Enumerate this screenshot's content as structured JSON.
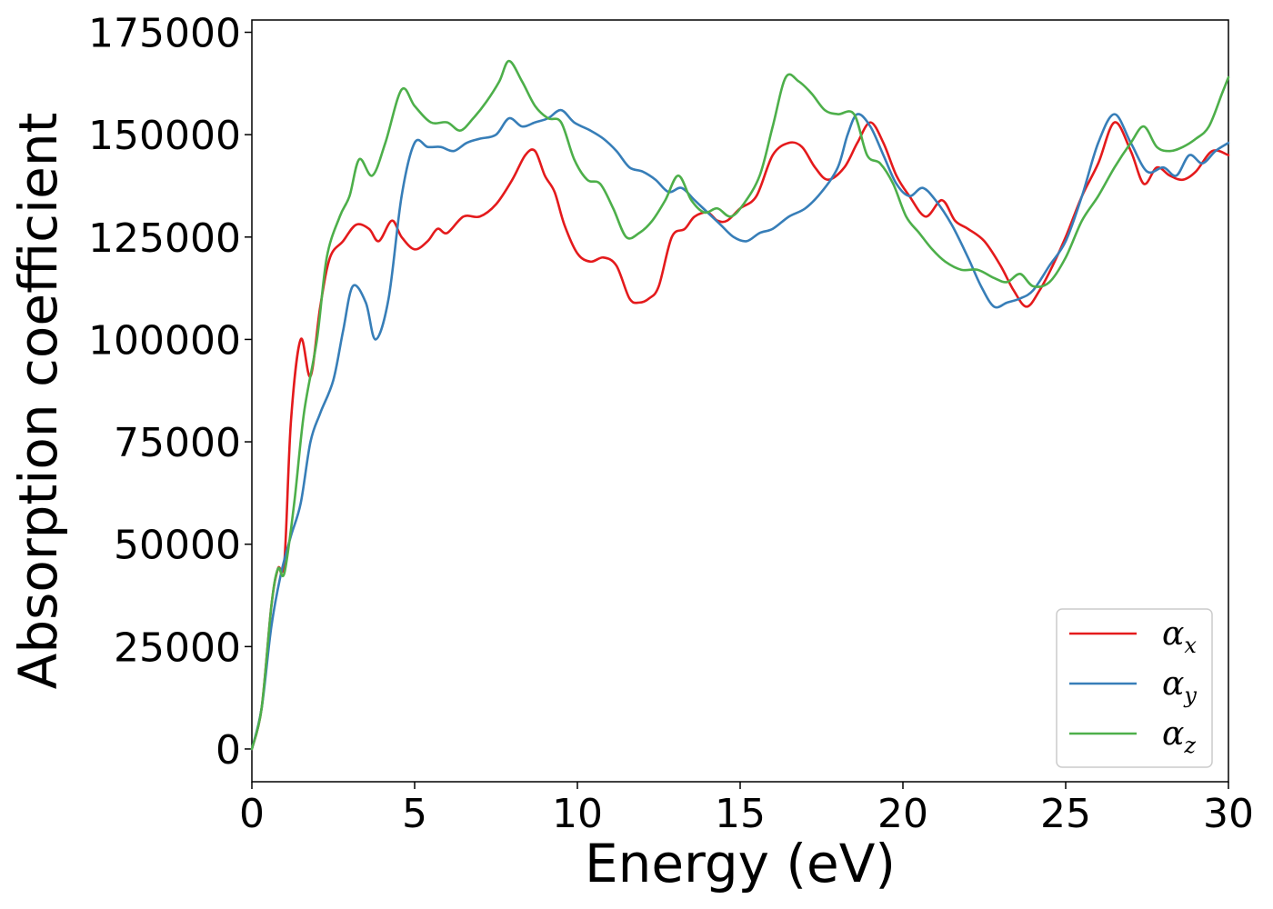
{
  "chart_data": {
    "type": "line",
    "xlabel": "Energy (eV)",
    "ylabel": "Absorption coefficient",
    "xlim": [
      0,
      30
    ],
    "ylim": [
      -8000,
      178000
    ],
    "xticks": [
      0,
      5,
      10,
      15,
      20,
      25,
      30
    ],
    "yticks": [
      0,
      25000,
      50000,
      75000,
      100000,
      125000,
      150000,
      175000
    ],
    "grid": false,
    "legend_position": "lower-right",
    "series": [
      {
        "name": "α_x",
        "symbol": "α",
        "subscript": "x",
        "color": "#e41a1c",
        "points": [
          [
            0,
            0
          ],
          [
            0.3,
            10000
          ],
          [
            0.6,
            35000
          ],
          [
            0.8,
            44000
          ],
          [
            1.0,
            46000
          ],
          [
            1.2,
            80000
          ],
          [
            1.5,
            100000
          ],
          [
            1.8,
            91000
          ],
          [
            2.1,
            108000
          ],
          [
            2.4,
            120000
          ],
          [
            2.8,
            124000
          ],
          [
            3.2,
            128000
          ],
          [
            3.6,
            127000
          ],
          [
            3.9,
            124000
          ],
          [
            4.3,
            129000
          ],
          [
            4.6,
            125000
          ],
          [
            5.0,
            122000
          ],
          [
            5.4,
            124000
          ],
          [
            5.7,
            127000
          ],
          [
            6.0,
            126000
          ],
          [
            6.5,
            130000
          ],
          [
            7.0,
            130000
          ],
          [
            7.5,
            133000
          ],
          [
            8.0,
            139000
          ],
          [
            8.4,
            145000
          ],
          [
            8.7,
            146000
          ],
          [
            9.0,
            140000
          ],
          [
            9.3,
            136000
          ],
          [
            9.6,
            128000
          ],
          [
            10.0,
            121000
          ],
          [
            10.4,
            119000
          ],
          [
            10.8,
            120000
          ],
          [
            11.2,
            118000
          ],
          [
            11.6,
            110000
          ],
          [
            11.9,
            109000
          ],
          [
            12.2,
            110000
          ],
          [
            12.5,
            113000
          ],
          [
            12.9,
            125000
          ],
          [
            13.3,
            127000
          ],
          [
            13.6,
            130000
          ],
          [
            14.0,
            131000
          ],
          [
            14.3,
            129000
          ],
          [
            14.6,
            129000
          ],
          [
            15.0,
            132000
          ],
          [
            15.5,
            135000
          ],
          [
            16.0,
            145000
          ],
          [
            16.5,
            148000
          ],
          [
            16.9,
            147000
          ],
          [
            17.3,
            142000
          ],
          [
            17.7,
            139000
          ],
          [
            18.2,
            142000
          ],
          [
            18.6,
            148000
          ],
          [
            19.0,
            153000
          ],
          [
            19.4,
            148000
          ],
          [
            19.8,
            140000
          ],
          [
            20.2,
            135000
          ],
          [
            20.7,
            130000
          ],
          [
            21.2,
            134000
          ],
          [
            21.6,
            129000
          ],
          [
            22.0,
            127000
          ],
          [
            22.5,
            124000
          ],
          [
            23.0,
            118000
          ],
          [
            23.4,
            112000
          ],
          [
            23.8,
            108000
          ],
          [
            24.2,
            112000
          ],
          [
            24.6,
            118000
          ],
          [
            25.0,
            125000
          ],
          [
            25.5,
            135000
          ],
          [
            26.0,
            143000
          ],
          [
            26.5,
            153000
          ],
          [
            27.0,
            146000
          ],
          [
            27.4,
            138000
          ],
          [
            27.8,
            142000
          ],
          [
            28.2,
            140000
          ],
          [
            28.6,
            139000
          ],
          [
            29.0,
            141000
          ],
          [
            29.5,
            146000
          ],
          [
            30.0,
            145000
          ]
        ]
      },
      {
        "name": "α_y",
        "symbol": "α",
        "subscript": "y",
        "color": "#377eb8",
        "points": [
          [
            0,
            0
          ],
          [
            0.3,
            10000
          ],
          [
            0.6,
            30000
          ],
          [
            0.9,
            43000
          ],
          [
            1.2,
            52000
          ],
          [
            1.5,
            60000
          ],
          [
            1.8,
            75000
          ],
          [
            2.1,
            82000
          ],
          [
            2.5,
            90000
          ],
          [
            2.8,
            102000
          ],
          [
            3.1,
            113000
          ],
          [
            3.5,
            109000
          ],
          [
            3.8,
            100000
          ],
          [
            4.2,
            110000
          ],
          [
            4.6,
            135000
          ],
          [
            5.0,
            148000
          ],
          [
            5.4,
            147000
          ],
          [
            5.8,
            147000
          ],
          [
            6.2,
            146000
          ],
          [
            6.6,
            148000
          ],
          [
            7.0,
            149000
          ],
          [
            7.5,
            150000
          ],
          [
            7.9,
            154000
          ],
          [
            8.3,
            152000
          ],
          [
            8.7,
            153000
          ],
          [
            9.1,
            154000
          ],
          [
            9.5,
            156000
          ],
          [
            9.9,
            153000
          ],
          [
            10.4,
            151000
          ],
          [
            10.8,
            149000
          ],
          [
            11.2,
            146000
          ],
          [
            11.6,
            142000
          ],
          [
            12.0,
            141000
          ],
          [
            12.4,
            139000
          ],
          [
            12.8,
            136000
          ],
          [
            13.2,
            137000
          ],
          [
            13.6,
            134000
          ],
          [
            14.0,
            131000
          ],
          [
            14.4,
            128000
          ],
          [
            14.8,
            125000
          ],
          [
            15.2,
            124000
          ],
          [
            15.6,
            126000
          ],
          [
            16.0,
            127000
          ],
          [
            16.5,
            130000
          ],
          [
            17.0,
            132000
          ],
          [
            17.5,
            136000
          ],
          [
            18.0,
            142000
          ],
          [
            18.3,
            150000
          ],
          [
            18.6,
            155000
          ],
          [
            19.0,
            152000
          ],
          [
            19.4,
            145000
          ],
          [
            19.8,
            138000
          ],
          [
            20.2,
            135000
          ],
          [
            20.6,
            137000
          ],
          [
            21.0,
            134000
          ],
          [
            21.5,
            128000
          ],
          [
            22.0,
            120000
          ],
          [
            22.4,
            113000
          ],
          [
            22.8,
            108000
          ],
          [
            23.2,
            109000
          ],
          [
            23.6,
            110000
          ],
          [
            24.0,
            112000
          ],
          [
            24.5,
            118000
          ],
          [
            25.0,
            124000
          ],
          [
            25.5,
            135000
          ],
          [
            26.0,
            148000
          ],
          [
            26.5,
            155000
          ],
          [
            27.0,
            148000
          ],
          [
            27.5,
            141000
          ],
          [
            28.0,
            142000
          ],
          [
            28.4,
            140000
          ],
          [
            28.8,
            145000
          ],
          [
            29.2,
            143000
          ],
          [
            29.6,
            146000
          ],
          [
            30.0,
            148000
          ]
        ]
      },
      {
        "name": "α_z",
        "symbol": "α",
        "subscript": "z",
        "color": "#4daf4a",
        "points": [
          [
            0,
            0
          ],
          [
            0.3,
            10000
          ],
          [
            0.6,
            35000
          ],
          [
            0.8,
            44000
          ],
          [
            1.0,
            43000
          ],
          [
            1.3,
            60000
          ],
          [
            1.6,
            82000
          ],
          [
            2.0,
            100000
          ],
          [
            2.3,
            120000
          ],
          [
            2.7,
            130000
          ],
          [
            3.0,
            135000
          ],
          [
            3.3,
            144000
          ],
          [
            3.7,
            140000
          ],
          [
            4.1,
            148000
          ],
          [
            4.6,
            161000
          ],
          [
            5.0,
            157000
          ],
          [
            5.5,
            153000
          ],
          [
            6.0,
            153000
          ],
          [
            6.4,
            151000
          ],
          [
            6.8,
            154000
          ],
          [
            7.2,
            158000
          ],
          [
            7.6,
            163000
          ],
          [
            7.9,
            168000
          ],
          [
            8.3,
            163000
          ],
          [
            8.7,
            157000
          ],
          [
            9.1,
            154000
          ],
          [
            9.5,
            153000
          ],
          [
            9.9,
            144000
          ],
          [
            10.3,
            139000
          ],
          [
            10.7,
            138000
          ],
          [
            11.1,
            132000
          ],
          [
            11.5,
            125000
          ],
          [
            11.9,
            126000
          ],
          [
            12.3,
            129000
          ],
          [
            12.7,
            134000
          ],
          [
            13.1,
            140000
          ],
          [
            13.5,
            134000
          ],
          [
            13.9,
            131000
          ],
          [
            14.3,
            132000
          ],
          [
            14.7,
            130000
          ],
          [
            15.1,
            133000
          ],
          [
            15.6,
            140000
          ],
          [
            16.0,
            152000
          ],
          [
            16.4,
            164000
          ],
          [
            16.8,
            163000
          ],
          [
            17.2,
            160000
          ],
          [
            17.6,
            156000
          ],
          [
            18.0,
            155000
          ],
          [
            18.5,
            155000
          ],
          [
            18.9,
            145000
          ],
          [
            19.3,
            143000
          ],
          [
            19.7,
            138000
          ],
          [
            20.1,
            130000
          ],
          [
            20.5,
            126000
          ],
          [
            20.9,
            122000
          ],
          [
            21.3,
            119000
          ],
          [
            21.8,
            117000
          ],
          [
            22.3,
            117000
          ],
          [
            22.8,
            115000
          ],
          [
            23.2,
            114000
          ],
          [
            23.6,
            116000
          ],
          [
            24.0,
            113000
          ],
          [
            24.5,
            114000
          ],
          [
            25.0,
            120000
          ],
          [
            25.5,
            129000
          ],
          [
            26.0,
            135000
          ],
          [
            26.5,
            142000
          ],
          [
            27.0,
            148000
          ],
          [
            27.4,
            152000
          ],
          [
            27.8,
            147000
          ],
          [
            28.2,
            146000
          ],
          [
            28.6,
            147000
          ],
          [
            29.0,
            149000
          ],
          [
            29.4,
            152000
          ],
          [
            29.8,
            160000
          ],
          [
            30.0,
            164000
          ]
        ]
      }
    ]
  }
}
